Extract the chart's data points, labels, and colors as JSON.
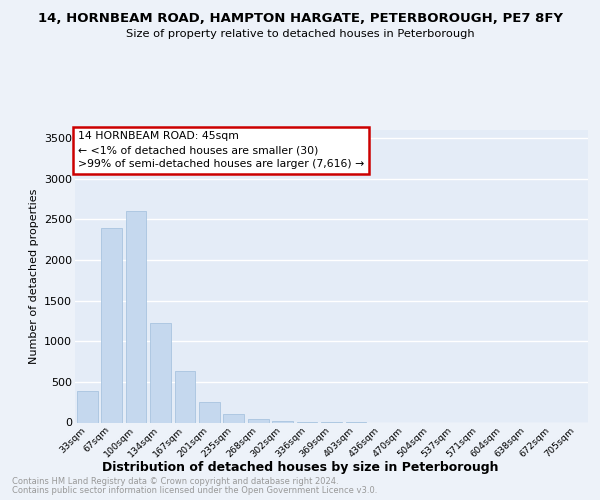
{
  "title": "14, HORNBEAM ROAD, HAMPTON HARGATE, PETERBOROUGH, PE7 8FY",
  "subtitle": "Size of property relative to detached houses in Peterborough",
  "xlabel": "Distribution of detached houses by size in Peterborough",
  "ylabel": "Number of detached properties",
  "categories": [
    "33sqm",
    "67sqm",
    "100sqm",
    "134sqm",
    "167sqm",
    "201sqm",
    "235sqm",
    "268sqm",
    "302sqm",
    "336sqm",
    "369sqm",
    "403sqm",
    "436sqm",
    "470sqm",
    "504sqm",
    "537sqm",
    "571sqm",
    "604sqm",
    "638sqm",
    "672sqm",
    "705sqm"
  ],
  "values": [
    390,
    2400,
    2600,
    1230,
    640,
    250,
    105,
    45,
    15,
    5,
    2,
    1,
    0,
    0,
    0,
    0,
    0,
    0,
    0,
    0,
    0
  ],
  "bar_color": "#c5d8ee",
  "bar_edgecolor": "#a8c4e0",
  "annotation_box_edgecolor": "#cc0000",
  "annotation_text_line1": "14 HORNBEAM ROAD: 45sqm",
  "annotation_text_line2": "← <1% of detached houses are smaller (30)",
  "annotation_text_line3": ">99% of semi-detached houses are larger (7,616) →",
  "ylim": [
    0,
    3600
  ],
  "yticks": [
    0,
    500,
    1000,
    1500,
    2000,
    2500,
    3000,
    3500
  ],
  "footer_line1": "Contains HM Land Registry data © Crown copyright and database right 2024.",
  "footer_line2": "Contains public sector information licensed under the Open Government Licence v3.0.",
  "fig_facecolor": "#edf2f9",
  "plot_facecolor": "#e4ecf7"
}
